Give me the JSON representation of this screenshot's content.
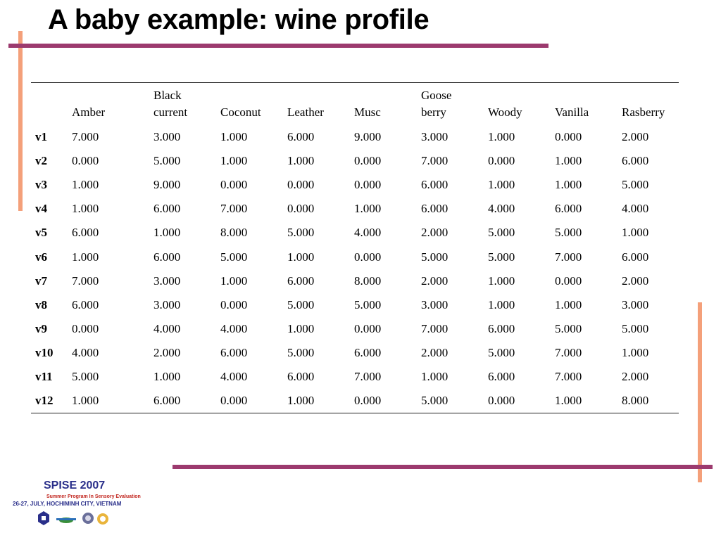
{
  "slide": {
    "title": "A baby example: wine profile"
  },
  "table": {
    "columns": [
      {
        "line1": "",
        "line2": "Amber"
      },
      {
        "line1": "Black",
        "line2": "current"
      },
      {
        "line1": "",
        "line2": "Coconut"
      },
      {
        "line1": "",
        "line2": "Leather"
      },
      {
        "line1": "",
        "line2": "Musc"
      },
      {
        "line1": "Goose",
        "line2": "berry"
      },
      {
        "line1": "",
        "line2": "Woody"
      },
      {
        "line1": "",
        "line2": "Vanilla"
      },
      {
        "line1": "",
        "line2": "Rasberry"
      }
    ],
    "rows": [
      {
        "label": "v1",
        "values": [
          "7.000",
          "3.000",
          "1.000",
          "6.000",
          "9.000",
          "3.000",
          "1.000",
          "0.000",
          "2.000"
        ]
      },
      {
        "label": "v2",
        "values": [
          "0.000",
          "5.000",
          "1.000",
          "1.000",
          "0.000",
          "7.000",
          "0.000",
          "1.000",
          "6.000"
        ]
      },
      {
        "label": "v3",
        "values": [
          "1.000",
          "9.000",
          "0.000",
          "0.000",
          "0.000",
          "6.000",
          "1.000",
          "1.000",
          "5.000"
        ]
      },
      {
        "label": "v4",
        "values": [
          "1.000",
          "6.000",
          "7.000",
          "0.000",
          "1.000",
          "6.000",
          "4.000",
          "6.000",
          "4.000"
        ]
      },
      {
        "label": "v5",
        "values": [
          "6.000",
          "1.000",
          "8.000",
          "5.000",
          "4.000",
          "2.000",
          "5.000",
          "5.000",
          "1.000"
        ]
      },
      {
        "label": "v6",
        "values": [
          "1.000",
          "6.000",
          "5.000",
          "1.000",
          "0.000",
          "5.000",
          "5.000",
          "7.000",
          "6.000"
        ]
      },
      {
        "label": "v7",
        "values": [
          "7.000",
          "3.000",
          "1.000",
          "6.000",
          "8.000",
          "2.000",
          "1.000",
          "0.000",
          "2.000"
        ]
      },
      {
        "label": "v8",
        "values": [
          "6.000",
          "3.000",
          "0.000",
          "5.000",
          "5.000",
          "3.000",
          "1.000",
          "1.000",
          "3.000"
        ]
      },
      {
        "label": "v9",
        "values": [
          "0.000",
          "4.000",
          "4.000",
          "1.000",
          "0.000",
          "7.000",
          "6.000",
          "5.000",
          "5.000"
        ]
      },
      {
        "label": "v10",
        "values": [
          "4.000",
          "2.000",
          "6.000",
          "5.000",
          "6.000",
          "2.000",
          "5.000",
          "7.000",
          "1.000"
        ]
      },
      {
        "label": "v11",
        "values": [
          "5.000",
          "1.000",
          "4.000",
          "6.000",
          "7.000",
          "1.000",
          "6.000",
          "7.000",
          "2.000"
        ]
      },
      {
        "label": "v12",
        "values": [
          "1.000",
          "6.000",
          "0.000",
          "1.000",
          "0.000",
          "5.000",
          "0.000",
          "1.000",
          "8.000"
        ]
      }
    ]
  },
  "footer_logo": {
    "name": "SPISE 2007",
    "program": "Summer Program In Sensory Evaluation",
    "place": "26-27, JULY, HOCHIMINH CITY, VIETNAM"
  },
  "colors": {
    "accent_bar": "#9c3a6e",
    "vertical_bar": "#f4a07a",
    "logo_blue": "#2a2f8a",
    "logo_red": "#c2261f"
  }
}
